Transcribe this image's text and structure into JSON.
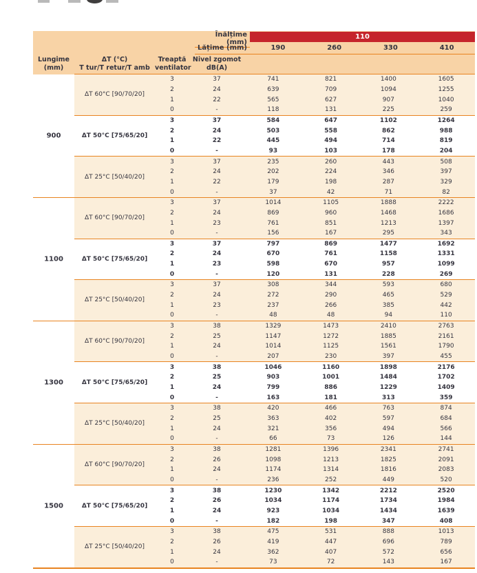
{
  "colors": {
    "header_peach": "#f8d3a6",
    "band_cream": "#fbeeda",
    "banner_red": "#c5242b",
    "rule_orange": "#e8831f",
    "text_dark": "#35343f"
  },
  "table": {
    "header": {
      "inaltime_label": "Înălțime (mm)",
      "inaltime_value": "110",
      "latime_label": "Lățime (mm)",
      "widths": [
        "190",
        "260",
        "330",
        "410"
      ],
      "lungime_line1": "Lungime",
      "lungime_line2": "(mm)",
      "dt_line1": "ΔT (°C)",
      "dt_line2": "T tur/T retur/T amb",
      "treapta_line1": "Treaptă",
      "treapta_line2": "ventilator",
      "zgomot_line1": "Nivel zgomot",
      "zgomot_line2": "dB(A)"
    },
    "groups": [
      {
        "lungime": "900",
        "subgroups": [
          {
            "dt": "ΔT 60°C [90/70/20]",
            "bold": false,
            "rows": [
              {
                "treapta": "3",
                "zgomot": "37",
                "values": [
                  "741",
                  "821",
                  "1400",
                  "1605"
                ]
              },
              {
                "treapta": "2",
                "zgomot": "24",
                "values": [
                  "639",
                  "709",
                  "1094",
                  "1255"
                ]
              },
              {
                "treapta": "1",
                "zgomot": "22",
                "values": [
                  "565",
                  "627",
                  "907",
                  "1040"
                ]
              },
              {
                "treapta": "0",
                "zgomot": "-",
                "values": [
                  "118",
                  "131",
                  "225",
                  "259"
                ]
              }
            ]
          },
          {
            "dt": "ΔT 50°C [75/65/20]",
            "bold": true,
            "rows": [
              {
                "treapta": "3",
                "zgomot": "37",
                "values": [
                  "584",
                  "647",
                  "1102",
                  "1264"
                ]
              },
              {
                "treapta": "2",
                "zgomot": "24",
                "values": [
                  "503",
                  "558",
                  "862",
                  "988"
                ]
              },
              {
                "treapta": "1",
                "zgomot": "22",
                "values": [
                  "445",
                  "494",
                  "714",
                  "819"
                ]
              },
              {
                "treapta": "0",
                "zgomot": "-",
                "values": [
                  "93",
                  "103",
                  "178",
                  "204"
                ]
              }
            ]
          },
          {
            "dt": "ΔT 25°C [50/40/20]",
            "bold": false,
            "rows": [
              {
                "treapta": "3",
                "zgomot": "37",
                "values": [
                  "235",
                  "260",
                  "443",
                  "508"
                ]
              },
              {
                "treapta": "2",
                "zgomot": "24",
                "values": [
                  "202",
                  "224",
                  "346",
                  "397"
                ]
              },
              {
                "treapta": "1",
                "zgomot": "22",
                "values": [
                  "179",
                  "198",
                  "287",
                  "329"
                ]
              },
              {
                "treapta": "0",
                "zgomot": "-",
                "values": [
                  "37",
                  "42",
                  "71",
                  "82"
                ]
              }
            ]
          }
        ]
      },
      {
        "lungime": "1100",
        "subgroups": [
          {
            "dt": "ΔT 60°C [90/70/20]",
            "bold": false,
            "rows": [
              {
                "treapta": "3",
                "zgomot": "37",
                "values": [
                  "1014",
                  "1105",
                  "1888",
                  "2222"
                ]
              },
              {
                "treapta": "2",
                "zgomot": "24",
                "values": [
                  "869",
                  "960",
                  "1468",
                  "1686"
                ]
              },
              {
                "treapta": "1",
                "zgomot": "23",
                "values": [
                  "761",
                  "851",
                  "1213",
                  "1397"
                ]
              },
              {
                "treapta": "0",
                "zgomot": "-",
                "values": [
                  "156",
                  "167",
                  "295",
                  "343"
                ]
              }
            ]
          },
          {
            "dt": "ΔT 50°C [75/65/20]",
            "bold": true,
            "rows": [
              {
                "treapta": "3",
                "zgomot": "37",
                "values": [
                  "797",
                  "869",
                  "1477",
                  "1692"
                ]
              },
              {
                "treapta": "2",
                "zgomot": "24",
                "values": [
                  "670",
                  "761",
                  "1158",
                  "1331"
                ]
              },
              {
                "treapta": "1",
                "zgomot": "23",
                "values": [
                  "598",
                  "670",
                  "957",
                  "1099"
                ]
              },
              {
                "treapta": "0",
                "zgomot": "-",
                "values": [
                  "120",
                  "131",
                  "228",
                  "269"
                ]
              }
            ]
          },
          {
            "dt": "ΔT 25°C [50/40/20]",
            "bold": false,
            "rows": [
              {
                "treapta": "3",
                "zgomot": "37",
                "values": [
                  "308",
                  "344",
                  "593",
                  "680"
                ]
              },
              {
                "treapta": "2",
                "zgomot": "24",
                "values": [
                  "272",
                  "290",
                  "465",
                  "529"
                ]
              },
              {
                "treapta": "1",
                "zgomot": "23",
                "values": [
                  "237",
                  "266",
                  "385",
                  "442"
                ]
              },
              {
                "treapta": "0",
                "zgomot": "-",
                "values": [
                  "48",
                  "48",
                  "94",
                  "110"
                ]
              }
            ]
          }
        ]
      },
      {
        "lungime": "1300",
        "subgroups": [
          {
            "dt": "ΔT 60°C [90/70/20]",
            "bold": false,
            "rows": [
              {
                "treapta": "3",
                "zgomot": "38",
                "values": [
                  "1329",
                  "1473",
                  "2410",
                  "2763"
                ]
              },
              {
                "treapta": "2",
                "zgomot": "25",
                "values": [
                  "1147",
                  "1272",
                  "1885",
                  "2161"
                ]
              },
              {
                "treapta": "1",
                "zgomot": "24",
                "values": [
                  "1014",
                  "1125",
                  "1561",
                  "1790"
                ]
              },
              {
                "treapta": "0",
                "zgomot": "-",
                "values": [
                  "207",
                  "230",
                  "397",
                  "455"
                ]
              }
            ]
          },
          {
            "dt": "ΔT 50°C [75/65/20]",
            "bold": true,
            "rows": [
              {
                "treapta": "3",
                "zgomot": "38",
                "values": [
                  "1046",
                  "1160",
                  "1898",
                  "2176"
                ]
              },
              {
                "treapta": "2",
                "zgomot": "25",
                "values": [
                  "903",
                  "1001",
                  "1484",
                  "1702"
                ]
              },
              {
                "treapta": "1",
                "zgomot": "24",
                "values": [
                  "799",
                  "886",
                  "1229",
                  "1409"
                ]
              },
              {
                "treapta": "0",
                "zgomot": "-",
                "values": [
                  "163",
                  "181",
                  "313",
                  "359"
                ]
              }
            ]
          },
          {
            "dt": "ΔT 25°C [50/40/20]",
            "bold": false,
            "rows": [
              {
                "treapta": "3",
                "zgomot": "38",
                "values": [
                  "420",
                  "466",
                  "763",
                  "874"
                ]
              },
              {
                "treapta": "2",
                "zgomot": "25",
                "values": [
                  "363",
                  "402",
                  "597",
                  "684"
                ]
              },
              {
                "treapta": "1",
                "zgomot": "24",
                "values": [
                  "321",
                  "356",
                  "494",
                  "566"
                ]
              },
              {
                "treapta": "0",
                "zgomot": "-",
                "values": [
                  "66",
                  "73",
                  "126",
                  "144"
                ]
              }
            ]
          }
        ]
      },
      {
        "lungime": "1500",
        "subgroups": [
          {
            "dt": "ΔT 60°C [90/70/20]",
            "bold": false,
            "rows": [
              {
                "treapta": "3",
                "zgomot": "38",
                "values": [
                  "1281",
                  "1396",
                  "2341",
                  "2741"
                ]
              },
              {
                "treapta": "2",
                "zgomot": "26",
                "values": [
                  "1098",
                  "1213",
                  "1825",
                  "2091"
                ]
              },
              {
                "treapta": "1",
                "zgomot": "24",
                "values": [
                  "1174",
                  "1314",
                  "1816",
                  "2083"
                ]
              },
              {
                "treapta": "0",
                "zgomot": "-",
                "values": [
                  "236",
                  "252",
                  "449",
                  "520"
                ]
              }
            ]
          },
          {
            "dt": "ΔT 50°C [75/65/20]",
            "bold": true,
            "rows": [
              {
                "treapta": "3",
                "zgomot": "38",
                "values": [
                  "1230",
                  "1342",
                  "2212",
                  "2520"
                ]
              },
              {
                "treapta": "2",
                "zgomot": "26",
                "values": [
                  "1034",
                  "1174",
                  "1734",
                  "1984"
                ]
              },
              {
                "treapta": "1",
                "zgomot": "24",
                "values": [
                  "923",
                  "1034",
                  "1434",
                  "1639"
                ]
              },
              {
                "treapta": "0",
                "zgomot": "-",
                "values": [
                  "182",
                  "198",
                  "347",
                  "408"
                ]
              }
            ]
          },
          {
            "dt": "ΔT 25°C [50/40/20]",
            "bold": false,
            "rows": [
              {
                "treapta": "3",
                "zgomot": "38",
                "values": [
                  "475",
                  "531",
                  "888",
                  "1013"
                ]
              },
              {
                "treapta": "2",
                "zgomot": "26",
                "values": [
                  "419",
                  "447",
                  "696",
                  "789"
                ]
              },
              {
                "treapta": "1",
                "zgomot": "24",
                "values": [
                  "362",
                  "407",
                  "572",
                  "656"
                ]
              },
              {
                "treapta": "0",
                "zgomot": "-",
                "values": [
                  "73",
                  "72",
                  "143",
                  "167"
                ]
              }
            ]
          }
        ]
      }
    ]
  }
}
